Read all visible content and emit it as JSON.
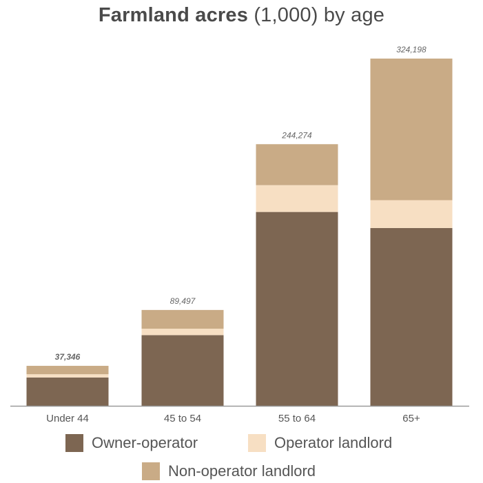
{
  "title": "Farmland acres",
  "title_unit": "(1,000) by age",
  "chart_data": {
    "type": "bar",
    "stacked": true,
    "title": "Farmland acres (1,000) by age",
    "categories": [
      "Under 44",
      "45 to 54",
      "55 to 64",
      "65+"
    ],
    "totals": [
      37346,
      89497,
      244274,
      324198
    ],
    "total_labels": [
      "37,346",
      "89,497",
      "244,274",
      "324,198"
    ],
    "series": [
      {
        "name": "Owner-operator",
        "color": "#7d6652",
        "values": [
          26500,
          66000,
          181000,
          166000
        ]
      },
      {
        "name": "Operator landlord",
        "color": "#f7dfc3",
        "values": [
          3000,
          6000,
          25000,
          26000
        ]
      },
      {
        "name": "Non-operator landlord",
        "color": "#c9ab86",
        "values": [
          7846,
          17497,
          38274,
          132198
        ]
      }
    ],
    "ylim": [
      0,
      324198
    ],
    "grid": false,
    "legend_position": "bottom",
    "xlabel": "",
    "ylabel": ""
  },
  "colors": {
    "axis": "#9a9a9a",
    "tick_text": "#555555",
    "total_text": "#666666"
  }
}
